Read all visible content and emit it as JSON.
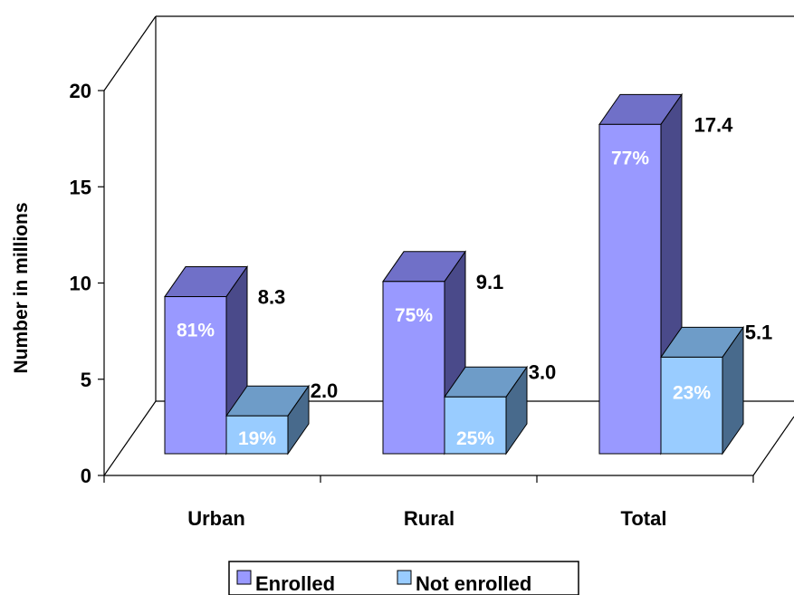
{
  "chart_data": {
    "type": "bar",
    "three_d": true,
    "ylabel": "Number in millions",
    "ylim": [
      0,
      20
    ],
    "y_ticks": [
      "0",
      "5",
      "10",
      "15",
      "20"
    ],
    "grid": false,
    "legend_position": "bottom",
    "categories": [
      "Urban",
      "Rural",
      "Total"
    ],
    "series": [
      {
        "name": "Enrolled",
        "color": "#9999ff",
        "values": [
          8.3,
          9.1,
          17.4
        ],
        "value_labels": [
          "8.3",
          "9.1",
          "17.4"
        ],
        "pct_labels": [
          "81%",
          "75%",
          "77%"
        ]
      },
      {
        "name": "Not enrolled",
        "color": "#99ccff",
        "values": [
          2.0,
          3.0,
          5.1
        ],
        "value_labels": [
          "2.0",
          "3.0",
          "5.1"
        ],
        "pct_labels": [
          "19%",
          "25%",
          "23%"
        ]
      }
    ]
  },
  "colors": {
    "enrolled_front": "#9999ff",
    "enrolled_top": "#7070c8",
    "enrolled_side": "#4a4a8a",
    "notenrolled_front": "#99ccff",
    "notenrolled_top": "#6e9cc8",
    "notenrolled_side": "#486a8c",
    "pct_text": "#ffffff"
  }
}
